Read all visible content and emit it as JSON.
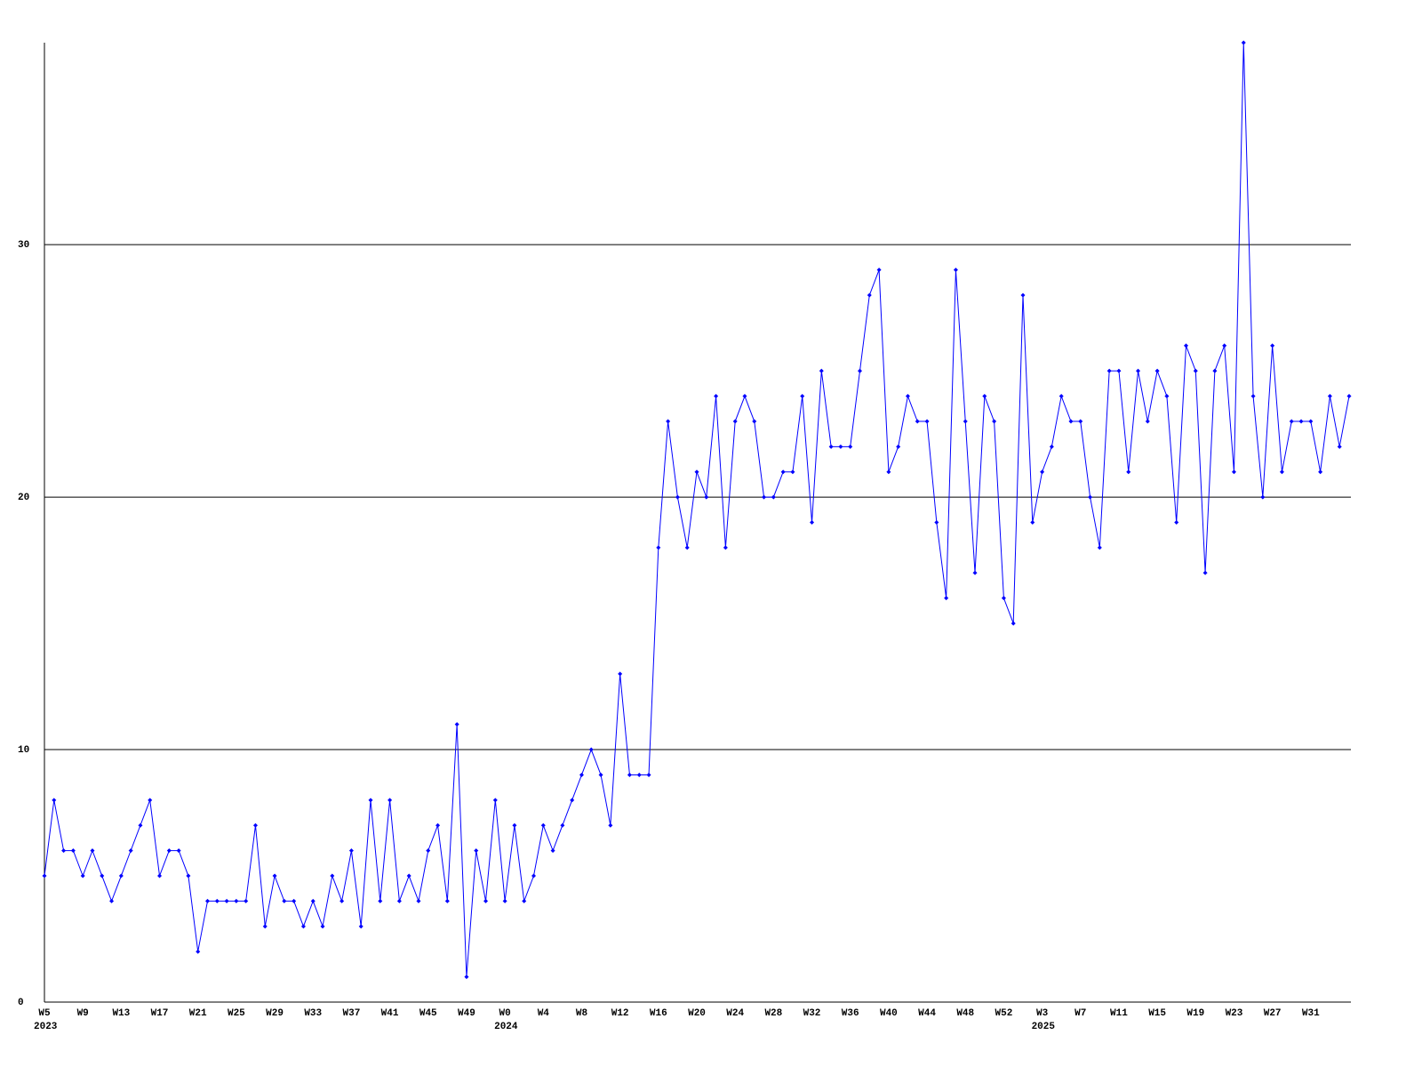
{
  "chart_data": {
    "type": "line",
    "categories": [
      "W5",
      null,
      null,
      null,
      "W9",
      null,
      null,
      null,
      "W13",
      null,
      null,
      null,
      "W17",
      null,
      null,
      null,
      "W21",
      null,
      null,
      null,
      "W25",
      null,
      null,
      null,
      "W29",
      null,
      null,
      null,
      "W33",
      null,
      null,
      null,
      "W37",
      null,
      null,
      null,
      "W41",
      null,
      null,
      null,
      "W45",
      null,
      null,
      null,
      "W49",
      null,
      null,
      null,
      "W0",
      null,
      null,
      null,
      "W4",
      null,
      null,
      null,
      "W8",
      null,
      null,
      null,
      "W12",
      null,
      null,
      null,
      "W16",
      null,
      null,
      null,
      "W20",
      null,
      null,
      null,
      "W24",
      null,
      null,
      null,
      "W28",
      null,
      null,
      null,
      "W32",
      null,
      null,
      null,
      "W36",
      null,
      null,
      null,
      "W40",
      null,
      null,
      null,
      "W44",
      null,
      null,
      null,
      "W48",
      null,
      null,
      null,
      "W52",
      null,
      null,
      null,
      "W3",
      null,
      null,
      null,
      "W7",
      null,
      null,
      null,
      "W11",
      null,
      null,
      null,
      "W15",
      null,
      null,
      null,
      "W19",
      null,
      null,
      null,
      "W23",
      null,
      null,
      null,
      "W27",
      null,
      null,
      null,
      "W31",
      null,
      null,
      null,
      null
    ],
    "year_labels": [
      {
        "label": "2023",
        "category_index": 0
      },
      {
        "label": "2024",
        "category_index": 48
      },
      {
        "label": "2025",
        "category_index": 104
      }
    ],
    "color": "#0000ff",
    "values": [
      5,
      8,
      6,
      6,
      5,
      6,
      5,
      4,
      5,
      6,
      7,
      8,
      5,
      6,
      6,
      5,
      2,
      4,
      4,
      4,
      4,
      4,
      7,
      3,
      5,
      4,
      4,
      3,
      4,
      3,
      5,
      4,
      6,
      3,
      8,
      4,
      8,
      4,
      5,
      4,
      6,
      7,
      4,
      11,
      1,
      6,
      4,
      8,
      4,
      7,
      4,
      5,
      7,
      6,
      7,
      8,
      9,
      10,
      9,
      7,
      13,
      9,
      9,
      9,
      18,
      23,
      20,
      18,
      21,
      20,
      24,
      18,
      23,
      24,
      23,
      20,
      20,
      21,
      21,
      24,
      19,
      25,
      22,
      22,
      22,
      25,
      28,
      29,
      21,
      22,
      24,
      23,
      23,
      19,
      16,
      29,
      23,
      17,
      24,
      23,
      16,
      15,
      28,
      19,
      21,
      22,
      24,
      23,
      23,
      20,
      18,
      25,
      25,
      21,
      25,
      23,
      25,
      24,
      19,
      26,
      25,
      17,
      25,
      26,
      21,
      38,
      24,
      20,
      26,
      21,
      23,
      23,
      23,
      21,
      24,
      22,
      24
    ],
    "ylim": [
      0,
      38
    ],
    "yticks": [
      0,
      10,
      20,
      30
    ],
    "grid": true
  }
}
